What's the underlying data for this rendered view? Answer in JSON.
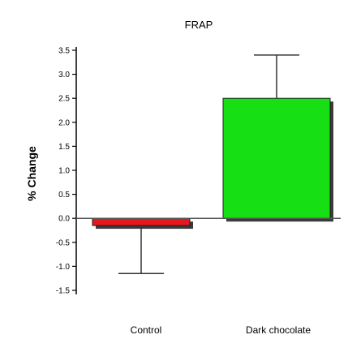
{
  "chart_data": {
    "type": "bar",
    "title": "FRAP",
    "xlabel": "",
    "ylabel": "% Change",
    "categories": [
      "Control",
      "Dark chocolate"
    ],
    "values": [
      -0.15,
      2.5
    ],
    "error_bars": [
      {
        "direction": "down",
        "value": -1.15
      },
      {
        "direction": "up",
        "value": 3.4
      }
    ],
    "ylim": [
      -1.5,
      3.5
    ],
    "yticks": [
      "3.5",
      "3.0",
      "2.5",
      "2.0",
      "1.5",
      "1.0",
      "0.5",
      "0.0",
      "-0.5",
      "-1.0",
      "-1.5"
    ],
    "ytick_values": [
      3.5,
      3.0,
      2.5,
      2.0,
      1.5,
      1.0,
      0.5,
      0.0,
      -0.5,
      -1.0,
      -1.5
    ],
    "bar_colors": [
      "#e8171b",
      "#16e014"
    ],
    "grid": false
  }
}
